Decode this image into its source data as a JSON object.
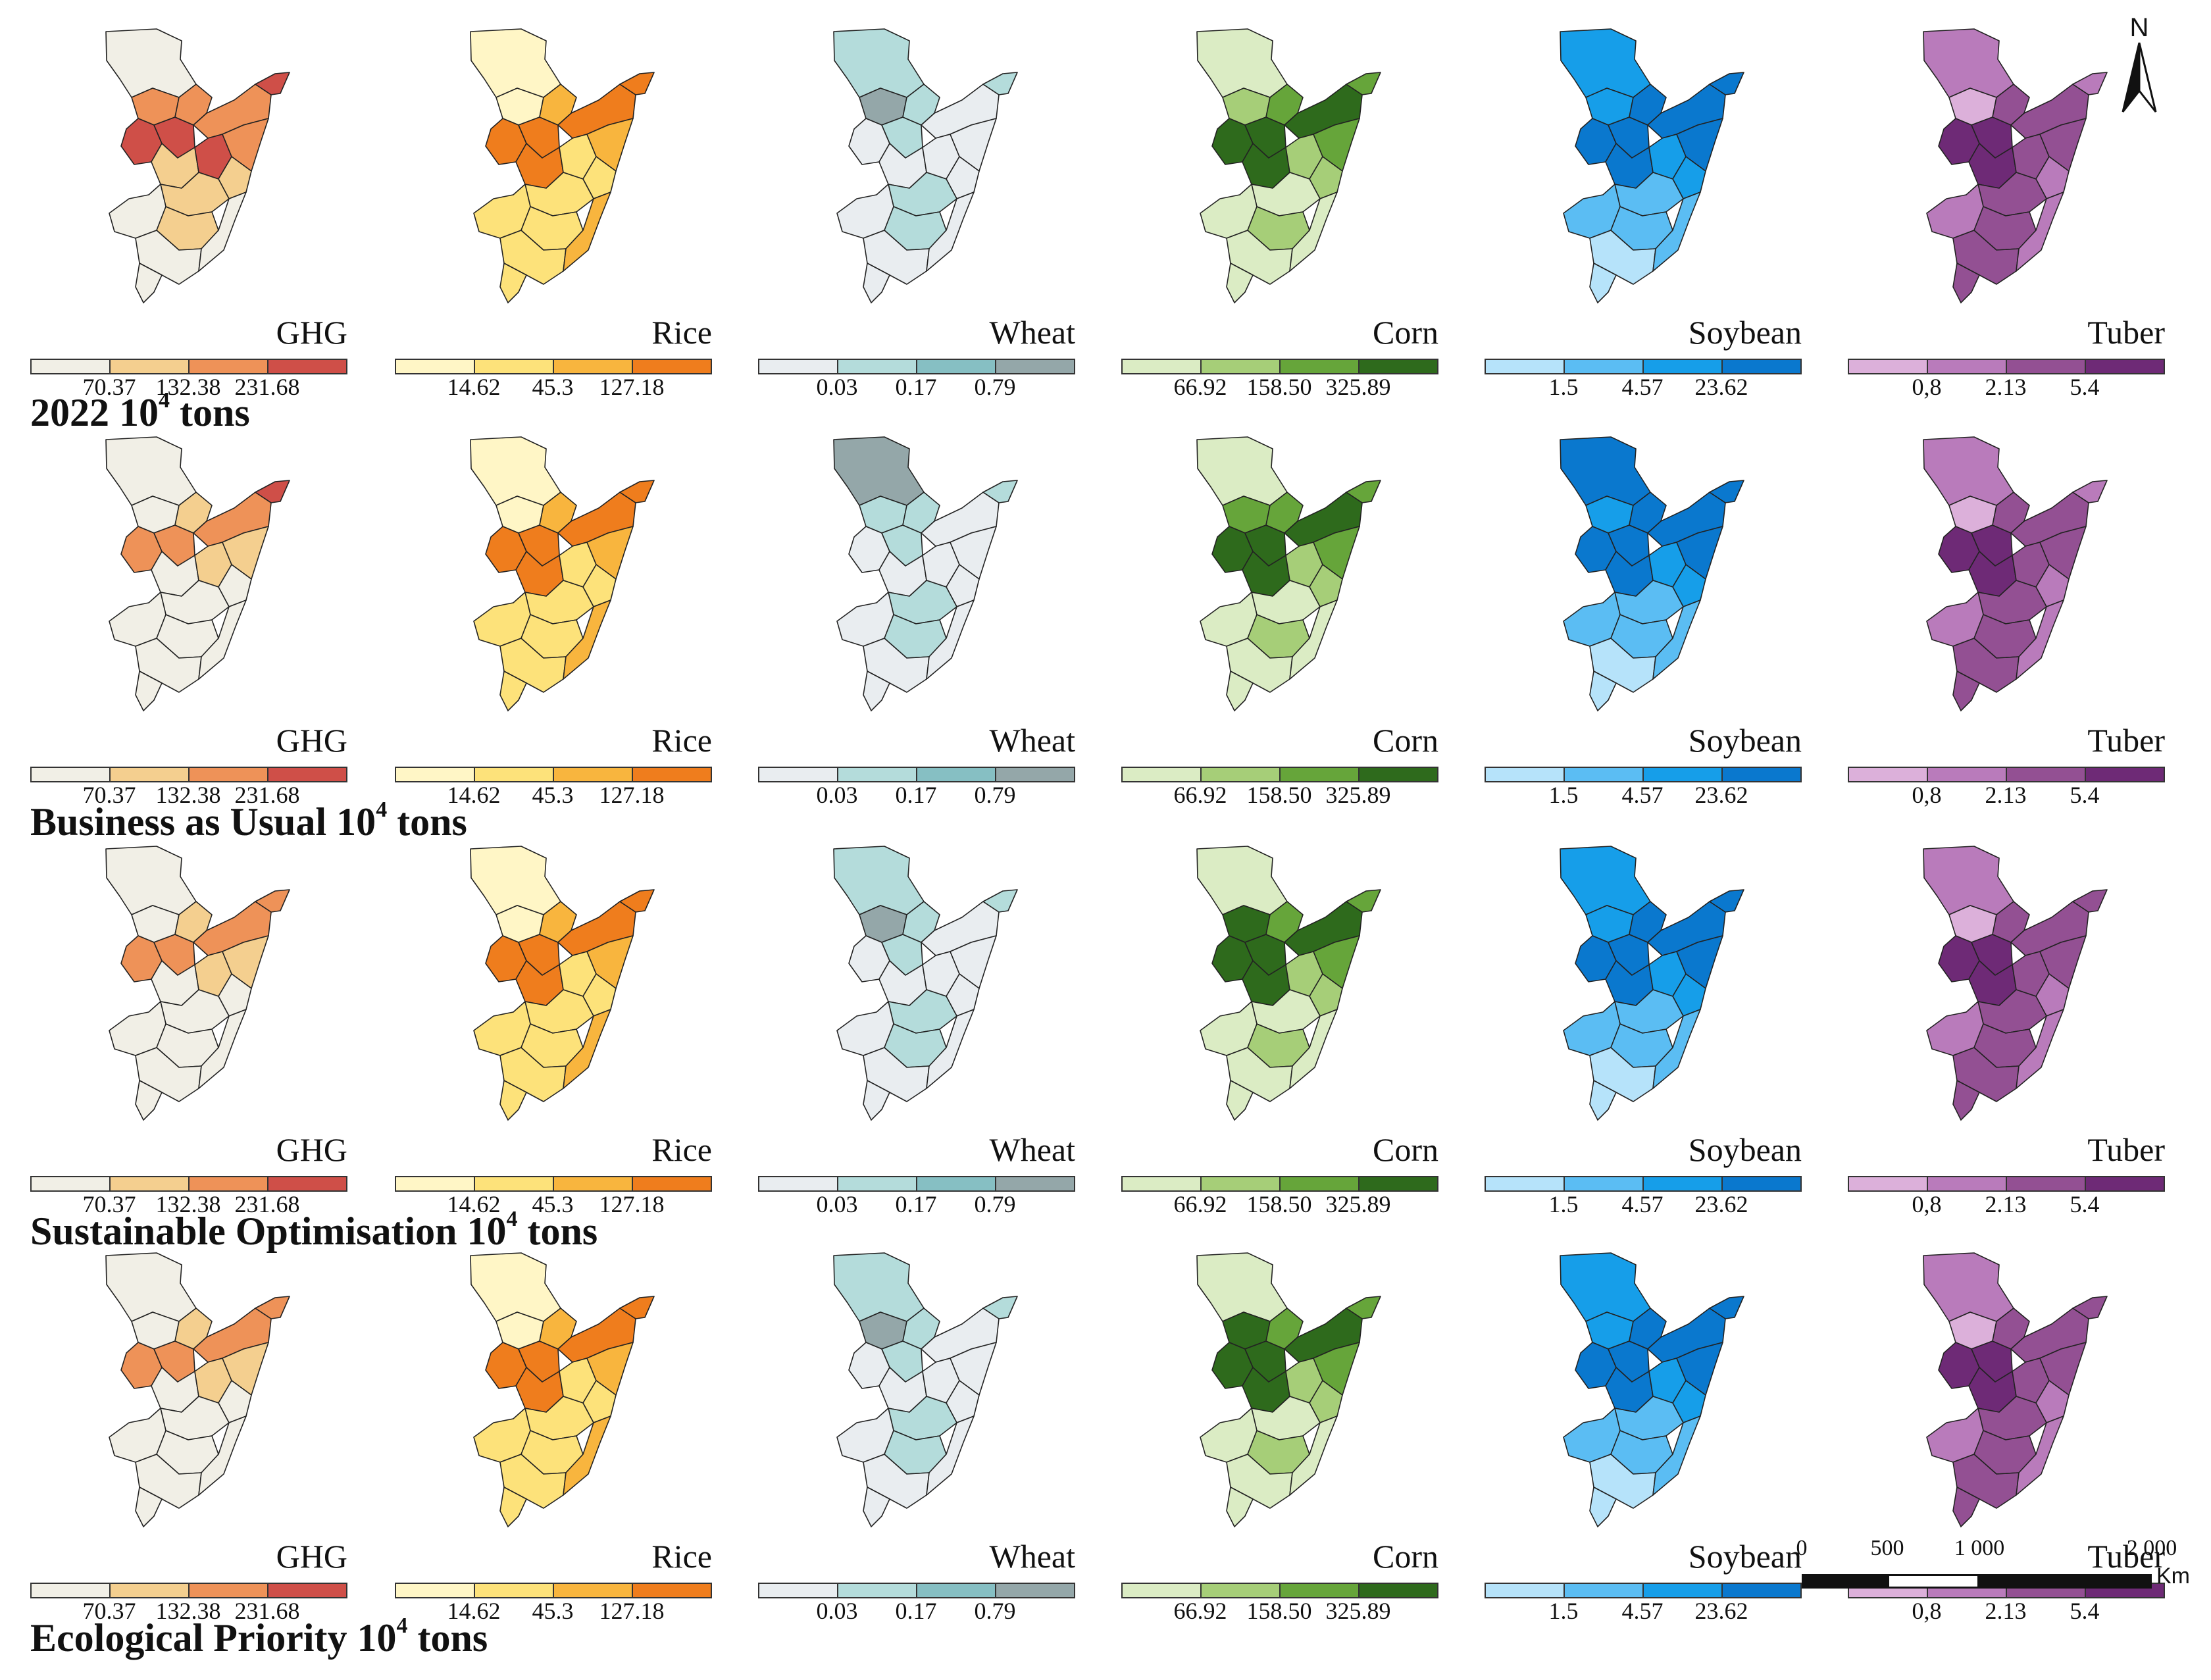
{
  "rows": [
    {
      "title_main": "2022 10",
      "title_sup": "4",
      "title_unit": " tons",
      "panels": {
        "ghg": {
          "label": "GHG",
          "classes": [
            0,
            2,
            3,
            3,
            2,
            2,
            3,
            1,
            3,
            2,
            1,
            1,
            0,
            1,
            0,
            0
          ]
        },
        "rice": {
          "label": "Rice",
          "classes": [
            0,
            0,
            3,
            3,
            2,
            3,
            3,
            3,
            1,
            2,
            1,
            1,
            1,
            1,
            1,
            2
          ]
        },
        "wheat": {
          "label": "Wheat",
          "classes": [
            1,
            3,
            0,
            1,
            1,
            0,
            1,
            0,
            0,
            0,
            0,
            1,
            0,
            1,
            0,
            0
          ]
        },
        "corn": {
          "label": "Corn",
          "classes": [
            0,
            1,
            3,
            3,
            2,
            3,
            2,
            3,
            1,
            2,
            1,
            0,
            0,
            1,
            0,
            0
          ]
        },
        "soybean": {
          "label": "Soybean",
          "classes": [
            2,
            2,
            3,
            3,
            3,
            3,
            3,
            3,
            2,
            3,
            2,
            1,
            1,
            1,
            0,
            1
          ]
        },
        "tuber": {
          "label": "Tuber",
          "classes": [
            1,
            0,
            3,
            3,
            2,
            2,
            1,
            3,
            2,
            2,
            1,
            2,
            1,
            2,
            2,
            1
          ]
        }
      }
    },
    {
      "title_main": "Business as Usual 10",
      "title_sup": "4",
      "title_unit": " tons",
      "panels": {
        "ghg": {
          "label": "GHG",
          "classes": [
            0,
            0,
            2,
            2,
            1,
            2,
            3,
            0,
            1,
            1,
            0,
            0,
            0,
            0,
            0,
            0
          ]
        },
        "rice": {
          "label": "Rice",
          "classes": [
            0,
            0,
            3,
            3,
            2,
            3,
            3,
            3,
            1,
            2,
            1,
            1,
            1,
            1,
            1,
            2
          ]
        },
        "wheat": {
          "label": "Wheat",
          "classes": [
            3,
            1,
            0,
            1,
            1,
            0,
            1,
            0,
            0,
            0,
            0,
            1,
            0,
            1,
            0,
            0
          ]
        },
        "corn": {
          "label": "Corn",
          "classes": [
            0,
            2,
            3,
            3,
            2,
            3,
            2,
            3,
            1,
            2,
            1,
            0,
            0,
            1,
            0,
            0
          ]
        },
        "soybean": {
          "label": "Soybean",
          "classes": [
            3,
            2,
            3,
            3,
            3,
            3,
            3,
            3,
            2,
            3,
            2,
            1,
            1,
            1,
            0,
            1
          ]
        },
        "tuber": {
          "label": "Tuber",
          "classes": [
            1,
            0,
            3,
            3,
            2,
            2,
            1,
            3,
            2,
            2,
            1,
            2,
            1,
            2,
            2,
            1
          ]
        }
      }
    },
    {
      "title_main": "Sustainable Optimisation 10",
      "title_sup": "4",
      "title_unit": " tons",
      "panels": {
        "ghg": {
          "label": "GHG",
          "classes": [
            0,
            0,
            2,
            2,
            1,
            2,
            2,
            0,
            1,
            1,
            0,
            0,
            0,
            0,
            0,
            0
          ]
        },
        "rice": {
          "label": "Rice",
          "classes": [
            0,
            0,
            3,
            3,
            2,
            3,
            3,
            3,
            1,
            2,
            1,
            1,
            1,
            1,
            1,
            2
          ]
        },
        "wheat": {
          "label": "Wheat",
          "classes": [
            1,
            3,
            0,
            1,
            1,
            0,
            1,
            0,
            0,
            0,
            0,
            1,
            0,
            1,
            0,
            0
          ]
        },
        "corn": {
          "label": "Corn",
          "classes": [
            0,
            3,
            3,
            3,
            2,
            3,
            2,
            3,
            1,
            2,
            1,
            0,
            0,
            1,
            0,
            0
          ]
        },
        "soybean": {
          "label": "Soybean",
          "classes": [
            2,
            2,
            3,
            3,
            3,
            3,
            3,
            3,
            2,
            3,
            2,
            1,
            1,
            1,
            0,
            1
          ]
        },
        "tuber": {
          "label": "Tuber",
          "classes": [
            1,
            0,
            3,
            3,
            2,
            2,
            2,
            3,
            2,
            2,
            1,
            2,
            1,
            2,
            2,
            1
          ]
        }
      }
    },
    {
      "title_main": "Ecological Priority 10",
      "title_sup": "4",
      "title_unit": " tons",
      "panels": {
        "ghg": {
          "label": "GHG",
          "classes": [
            0,
            0,
            2,
            2,
            1,
            2,
            2,
            0,
            1,
            1,
            0,
            0,
            0,
            0,
            0,
            0
          ]
        },
        "rice": {
          "label": "Rice",
          "classes": [
            0,
            0,
            3,
            3,
            2,
            3,
            3,
            3,
            1,
            2,
            1,
            1,
            1,
            1,
            1,
            2
          ]
        },
        "wheat": {
          "label": "Wheat",
          "classes": [
            1,
            3,
            0,
            1,
            1,
            0,
            1,
            0,
            0,
            0,
            0,
            1,
            0,
            1,
            0,
            0
          ]
        },
        "corn": {
          "label": "Corn",
          "classes": [
            0,
            3,
            3,
            3,
            2,
            3,
            2,
            3,
            1,
            2,
            1,
            0,
            0,
            1,
            0,
            0
          ]
        },
        "soybean": {
          "label": "Soybean",
          "classes": [
            2,
            2,
            3,
            3,
            3,
            3,
            3,
            3,
            2,
            3,
            2,
            1,
            1,
            1,
            0,
            1
          ]
        },
        "tuber": {
          "label": "Tuber",
          "classes": [
            1,
            0,
            3,
            3,
            2,
            2,
            2,
            3,
            2,
            2,
            1,
            2,
            1,
            2,
            2,
            1
          ]
        }
      }
    }
  ],
  "legends": {
    "ghg": {
      "colors": [
        "#f1efe6",
        "#f4cf8f",
        "#ee9258",
        "#cf4f48"
      ],
      "breaks": [
        "70.37",
        "132.38",
        "231.68"
      ]
    },
    "rice": {
      "colors": [
        "#fff6c6",
        "#fde27a",
        "#f8b53e",
        "#ef7d1d"
      ],
      "breaks": [
        "14.62",
        "45.3",
        "127.18"
      ]
    },
    "wheat": {
      "colors": [
        "#e9edf0",
        "#b4dcdb",
        "#86bfc3",
        "#94a7a9"
      ],
      "breaks": [
        "0.03",
        "0.17",
        "0.79"
      ]
    },
    "corn": {
      "colors": [
        "#dbecc4",
        "#a6ce78",
        "#66a53a",
        "#2e6a1c"
      ],
      "breaks": [
        "66.92",
        "158.50",
        "325.89"
      ]
    },
    "soybean": {
      "colors": [
        "#b6e3fa",
        "#5bbdf3",
        "#169ee9",
        "#0a78ce"
      ],
      "breaks": [
        "1.5",
        "4.57",
        "23.62"
      ]
    },
    "tuber": {
      "colors": [
        "#dcb0da",
        "#b97bbb",
        "#935093",
        "#6e2a76"
      ],
      "breaks": [
        "0,8",
        "2.13",
        "5.4"
      ]
    }
  },
  "north_arrow": {
    "label": "N"
  },
  "scale_bar": {
    "ticks": [
      "0",
      "500",
      "1 000",
      "2 000"
    ],
    "unit": "Km"
  }
}
